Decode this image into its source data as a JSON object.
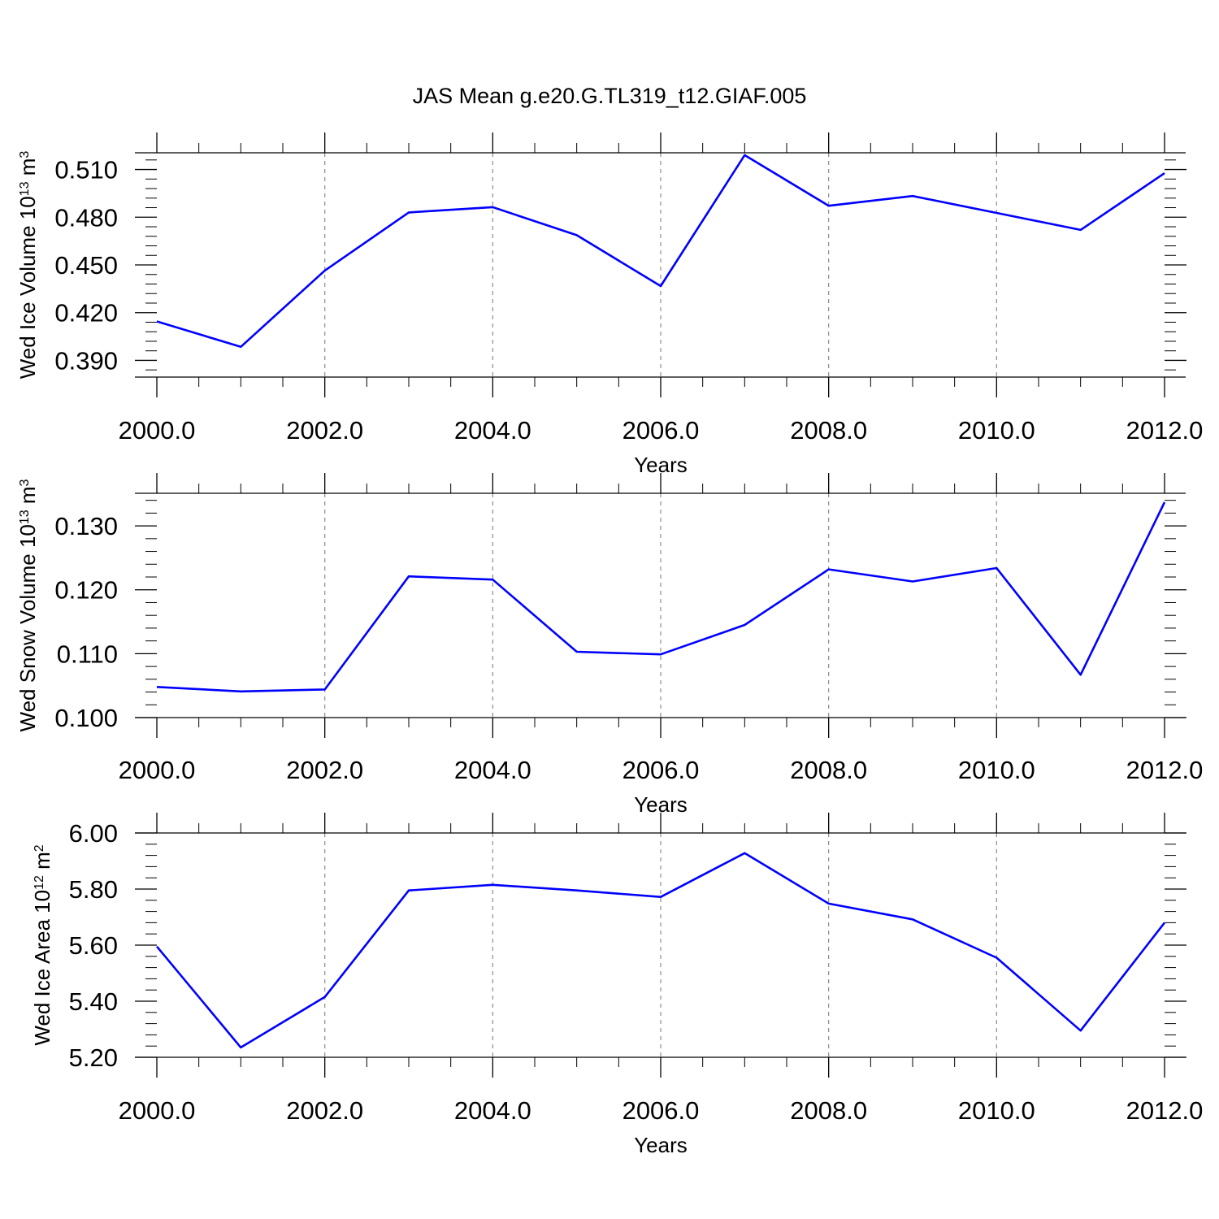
{
  "figure": {
    "title": "JAS Mean g.e20.G.TL319_t12.GIAF.005",
    "line_color": "#0000ff"
  },
  "chart_data": [
    {
      "type": "line",
      "title": "JAS Mean g.e20.G.TL319_t12.GIAF.005",
      "xlabel": "Years",
      "ylabel": {
        "main": "Wed Ice Volume 10",
        "exp": "13",
        "unit": " m",
        "unit_exp": "3"
      },
      "x": [
        2000,
        2001,
        2002,
        2003,
        2004,
        2005,
        2006,
        2007,
        2008,
        2009,
        2010,
        2011,
        2012
      ],
      "series": [
        {
          "values": [
            0.4145,
            0.3985,
            0.4465,
            0.483,
            0.4863,
            0.4687,
            0.4367,
            0.519,
            0.4872,
            0.4933,
            0.4827,
            0.472,
            0.5077
          ]
        }
      ],
      "xlim": [
        2000,
        2012
      ],
      "ylim": [
        0.3795,
        0.5205
      ],
      "xticks": [
        2000,
        2002,
        2004,
        2006,
        2008,
        2010,
        2012
      ],
      "xtick_labels": [
        "2000.0",
        "2002.0",
        "2004.0",
        "2006.0",
        "2008.0",
        "2010.0",
        "2012.0"
      ],
      "yticks": [
        0.39,
        0.42,
        0.45,
        0.48,
        0.51
      ],
      "ytick_labels": [
        "0.390",
        "0.420",
        "0.450",
        "0.480",
        "0.510"
      ],
      "yminor_step": 0.006,
      "grid": "vertical dashed at labeled years",
      "legend": "none"
    },
    {
      "type": "line",
      "xlabel": "Years",
      "ylabel": {
        "main": "Wed Snow Volume 10",
        "exp": "13",
        "unit": " m",
        "unit_exp": "3"
      },
      "x": [
        2000,
        2001,
        2002,
        2003,
        2004,
        2005,
        2006,
        2007,
        2008,
        2009,
        2010,
        2011,
        2012
      ],
      "series": [
        {
          "values": [
            0.1048,
            0.1041,
            0.1044,
            0.1221,
            0.1216,
            0.1103,
            0.1099,
            0.1145,
            0.1232,
            0.1213,
            0.1234,
            0.1067,
            0.1337
          ]
        }
      ],
      "xlim": [
        2000,
        2012
      ],
      "ylim": [
        0.1,
        0.1351
      ],
      "xticks": [
        2000,
        2002,
        2004,
        2006,
        2008,
        2010,
        2012
      ],
      "xtick_labels": [
        "2000.0",
        "2002.0",
        "2004.0",
        "2006.0",
        "2008.0",
        "2010.0",
        "2012.0"
      ],
      "yticks": [
        0.1,
        0.11,
        0.12,
        0.13
      ],
      "ytick_labels": [
        "0.100",
        "0.110",
        "0.120",
        "0.130"
      ],
      "yminor_step": 0.002,
      "grid": "vertical dashed at labeled years",
      "legend": "none"
    },
    {
      "type": "line",
      "xlabel": "Years",
      "ylabel": {
        "main": "Wed Ice Area 10",
        "exp": "12",
        "unit": " m",
        "unit_exp": "2"
      },
      "x": [
        2000,
        2001,
        2002,
        2003,
        2004,
        2005,
        2006,
        2007,
        2008,
        2009,
        2010,
        2011,
        2012
      ],
      "series": [
        {
          "values": [
            5.595,
            5.235,
            5.415,
            5.795,
            5.815,
            5.795,
            5.772,
            5.928,
            5.748,
            5.692,
            5.555,
            5.295,
            5.68
          ]
        }
      ],
      "xlim": [
        2000,
        2012
      ],
      "ylim": [
        5.2,
        6.0
      ],
      "xticks": [
        2000,
        2002,
        2004,
        2006,
        2008,
        2010,
        2012
      ],
      "xtick_labels": [
        "2000.0",
        "2002.0",
        "2004.0",
        "2006.0",
        "2008.0",
        "2010.0",
        "2012.0"
      ],
      "yticks": [
        5.2,
        5.4,
        5.6,
        5.8,
        6.0
      ],
      "ytick_labels": [
        "5.20",
        "5.40",
        "5.60",
        "5.80",
        "6.00"
      ],
      "yminor_step": 0.04,
      "grid": "vertical dashed at labeled years",
      "legend": "none"
    }
  ]
}
